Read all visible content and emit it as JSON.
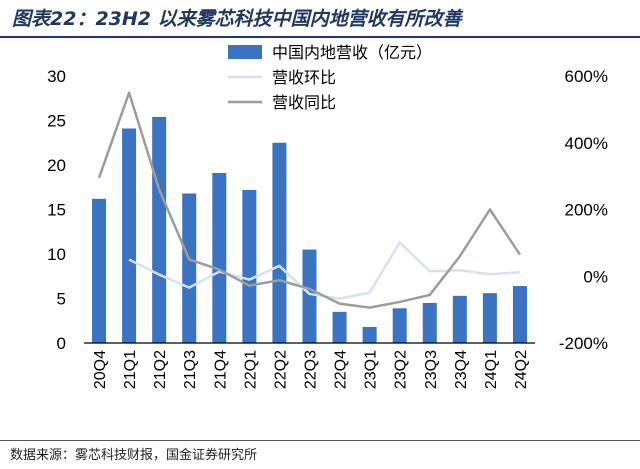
{
  "title": "图表22：23H2 以来雾芯科技中国内地营收有所改善",
  "source": "数据来源：雾芯科技财报，国金证券研究所",
  "chart_data": {
    "type": "bar+line",
    "categories": [
      "20Q4",
      "21Q1",
      "21Q2",
      "21Q3",
      "21Q4",
      "22Q1",
      "22Q2",
      "22Q3",
      "22Q4",
      "23Q1",
      "23Q2",
      "23Q3",
      "23Q4",
      "24Q1",
      "24Q2"
    ],
    "series": [
      {
        "name": "中国内地营收（亿元）",
        "type": "bar",
        "axis": "left",
        "color": "#3a73c2",
        "values": [
          16.2,
          24.1,
          25.4,
          16.8,
          19.1,
          17.2,
          22.5,
          10.5,
          3.5,
          1.8,
          3.9,
          4.5,
          5.3,
          5.6,
          6.4
        ]
      },
      {
        "name": "营收环比",
        "type": "line",
        "axis": "right",
        "color": "#d6e2f4",
        "unit": "%",
        "values": [
          null,
          50,
          5,
          -34,
          14,
          -10,
          31,
          -53,
          -67,
          -49,
          101,
          15,
          18,
          6,
          12
        ]
      },
      {
        "name": "营收同比",
        "type": "line",
        "axis": "right",
        "color": "#9d9d9d",
        "unit": "%",
        "values": [
          295,
          550,
          260,
          50,
          20,
          -28,
          -12,
          -38,
          -82,
          -94,
          -77,
          -56,
          60,
          200,
          65
        ]
      }
    ],
    "left_axis": {
      "min": 0,
      "max": 30,
      "ticks": [
        0,
        5,
        10,
        15,
        20,
        25,
        30
      ]
    },
    "right_axis": {
      "min": -200,
      "max": 600,
      "ticks": [
        "-200%",
        "0%",
        "200%",
        "400%",
        "600%"
      ]
    },
    "legend_position": "top-center"
  }
}
